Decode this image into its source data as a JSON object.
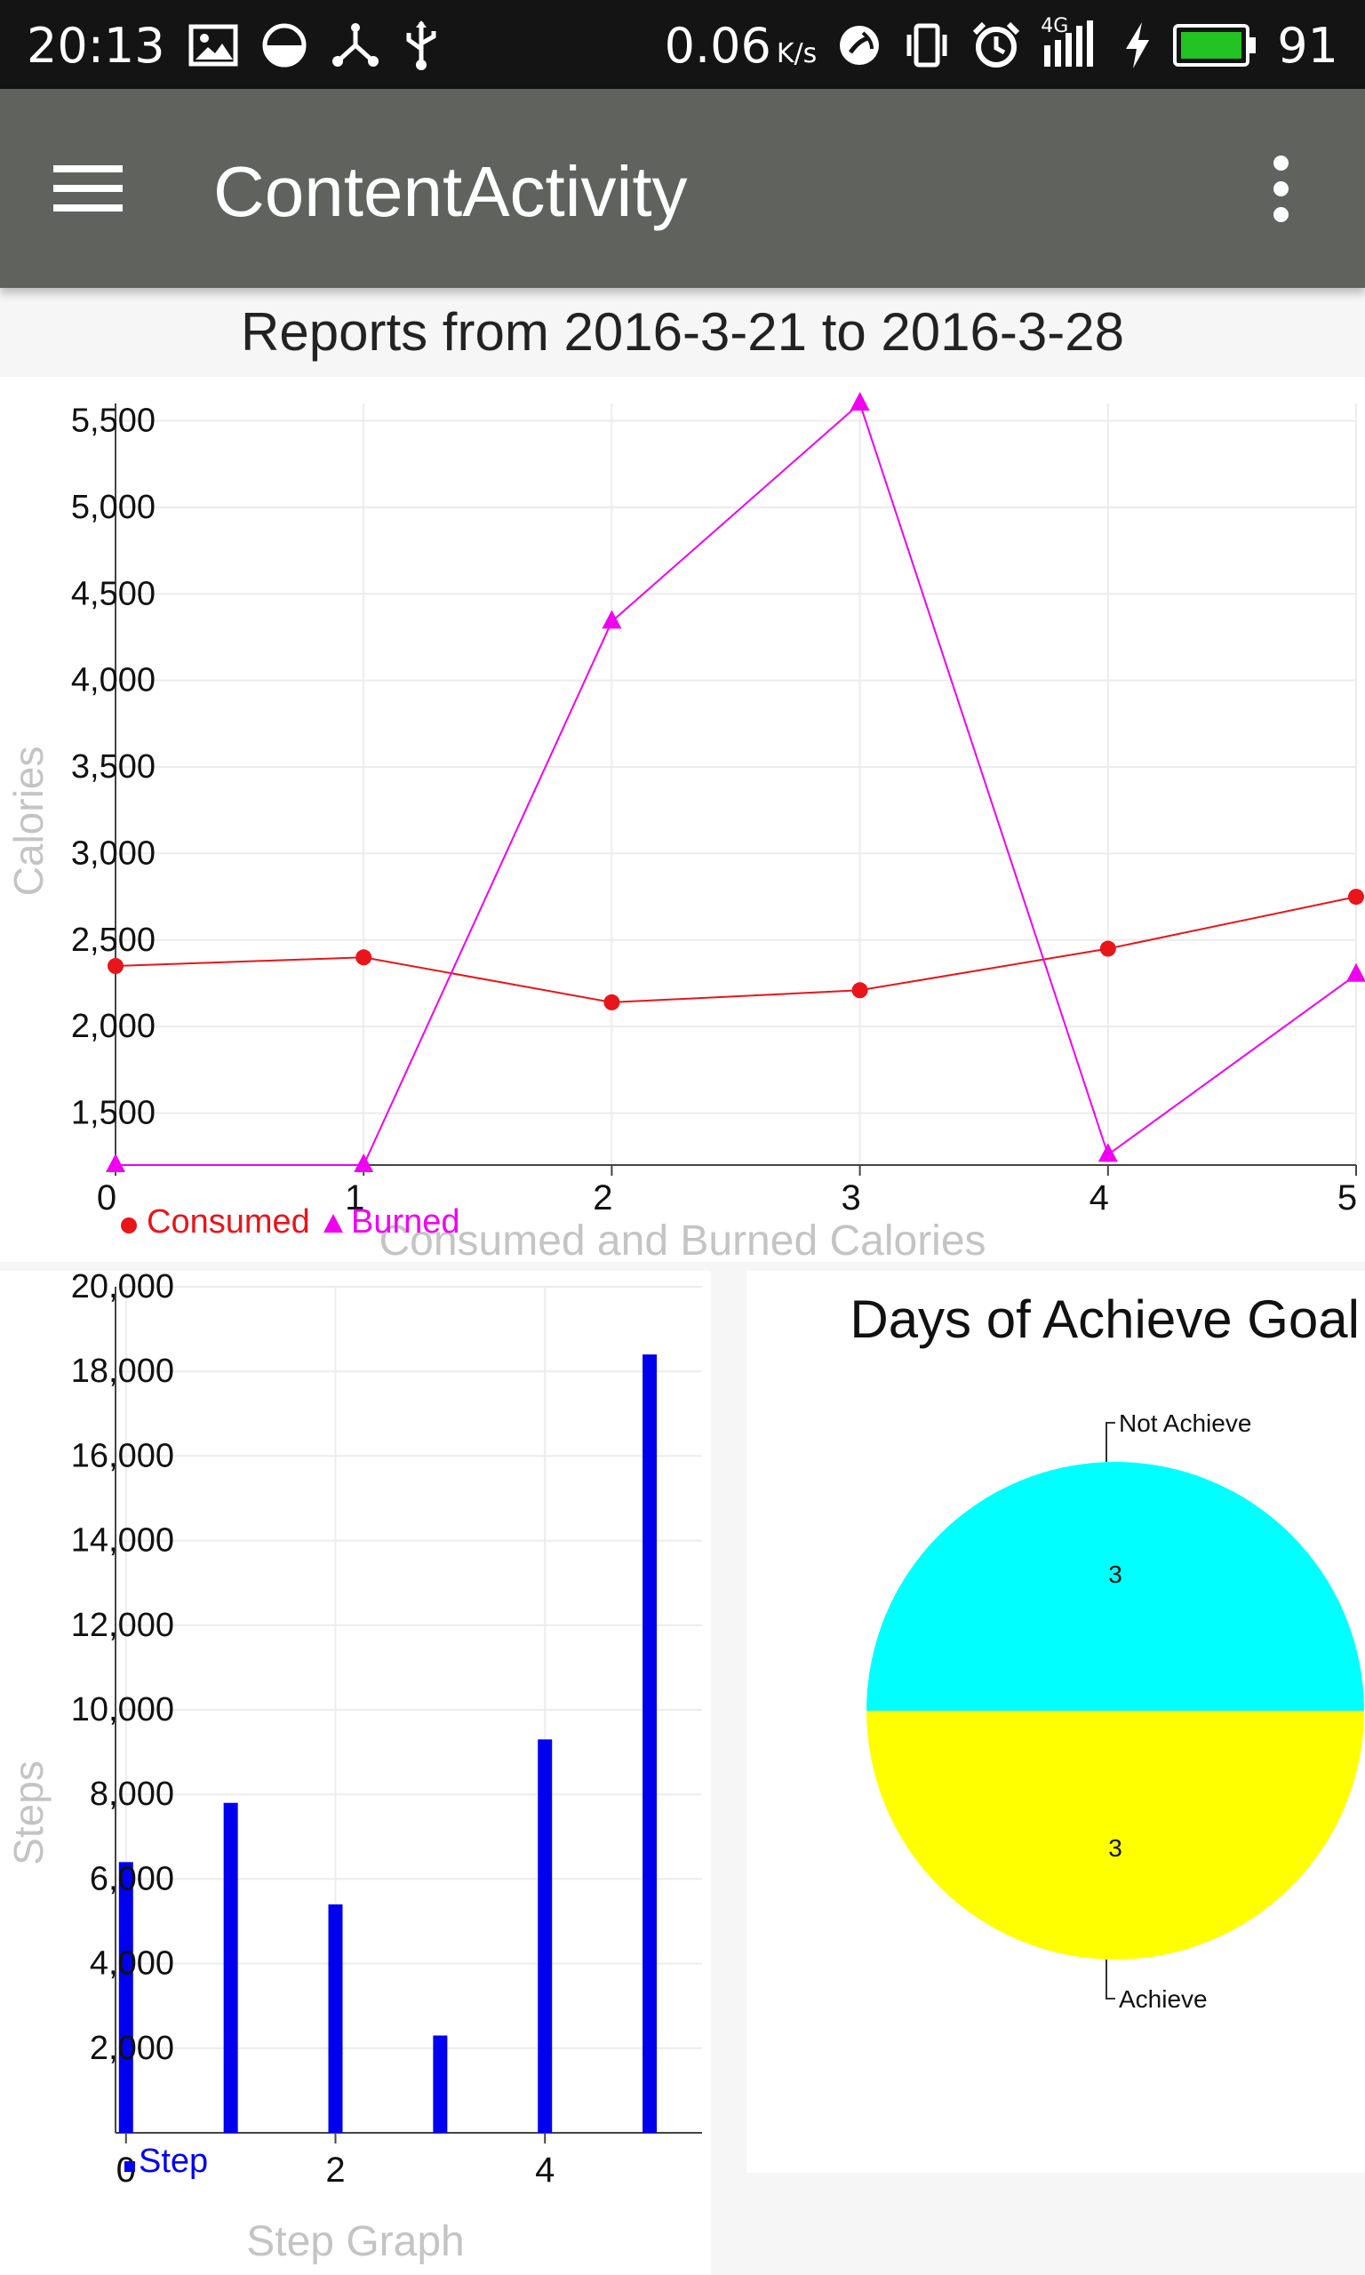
{
  "status_bar": {
    "time": "20:13",
    "network_speed": "0.06",
    "network_speed_unit": "K/s",
    "network_type": "4G",
    "battery_level": "91",
    "icons": [
      "image-icon",
      "data-saver-icon",
      "share-hub-icon",
      "usb-icon",
      "nfc-icon",
      "vibrate-icon",
      "alarm-icon",
      "signal-icon",
      "charging-icon",
      "battery-icon"
    ],
    "battery_color": "#22c322"
  },
  "app_bar": {
    "title": "ContentActivity",
    "menu_icon": "hamburger-menu-icon",
    "overflow_icon": "more-vert-icon",
    "background": "#5f625d"
  },
  "report": {
    "title": "Reports from 2016-3-21 to 2016-3-28"
  },
  "chart_data": [
    {
      "type": "line",
      "title": "Consumed and Burned Calories",
      "xlabel": "",
      "ylabel": "Calories",
      "x": [
        0,
        1,
        2,
        3,
        4,
        5
      ],
      "xlim": [
        0,
        5
      ],
      "ylim": [
        1200,
        5600
      ],
      "x_ticks": [
        "0",
        "1",
        "2",
        "3",
        "4",
        "5"
      ],
      "y_ticks": [
        "1,500",
        "2,000",
        "2,500",
        "3,000",
        "3,500",
        "4,000",
        "4,500",
        "5,000",
        "5,500"
      ],
      "y_tick_values": [
        1500,
        2000,
        2500,
        3000,
        3500,
        4000,
        4500,
        5000,
        5500
      ],
      "grid": true,
      "legend_position": "bottom-left",
      "series": [
        {
          "name": "Consumed",
          "marker": "circle",
          "color": "#e8151b",
          "values": [
            2350,
            2400,
            2140,
            2210,
            2450,
            2750
          ]
        },
        {
          "name": "Burned",
          "marker": "triangle",
          "color": "#f000f0",
          "values": [
            1200,
            1200,
            4340,
            5600,
            1260,
            2300
          ]
        }
      ]
    },
    {
      "type": "bar",
      "title": "Step Graph",
      "xlabel": "",
      "ylabel": "Steps",
      "x": [
        0,
        1,
        2,
        3,
        4,
        5
      ],
      "xlim": [
        -0.1,
        5.5
      ],
      "ylim": [
        0,
        20000
      ],
      "x_ticks": [
        "0",
        "2",
        "4"
      ],
      "x_tick_values": [
        0,
        2,
        4
      ],
      "y_ticks": [
        "2,000",
        "4,000",
        "6,000",
        "8,000",
        "10,000",
        "12,000",
        "14,000",
        "16,000",
        "18,000",
        "20,000"
      ],
      "y_tick_values": [
        2000,
        4000,
        6000,
        8000,
        10000,
        12000,
        14000,
        16000,
        18000,
        20000
      ],
      "grid": true,
      "legend_position": "bottom-left",
      "series": [
        {
          "name": "Step",
          "color": "#0000ee",
          "values": [
            6400,
            7800,
            5400,
            2300,
            9300,
            18400
          ]
        }
      ]
    },
    {
      "type": "pie",
      "title": "Days of Achieve Goal",
      "slices": [
        {
          "label": "Not Achieve",
          "value": 3,
          "color": "#00ffff"
        },
        {
          "label": "Achieve",
          "value": 3,
          "color": "#ffff00"
        }
      ]
    }
  ]
}
